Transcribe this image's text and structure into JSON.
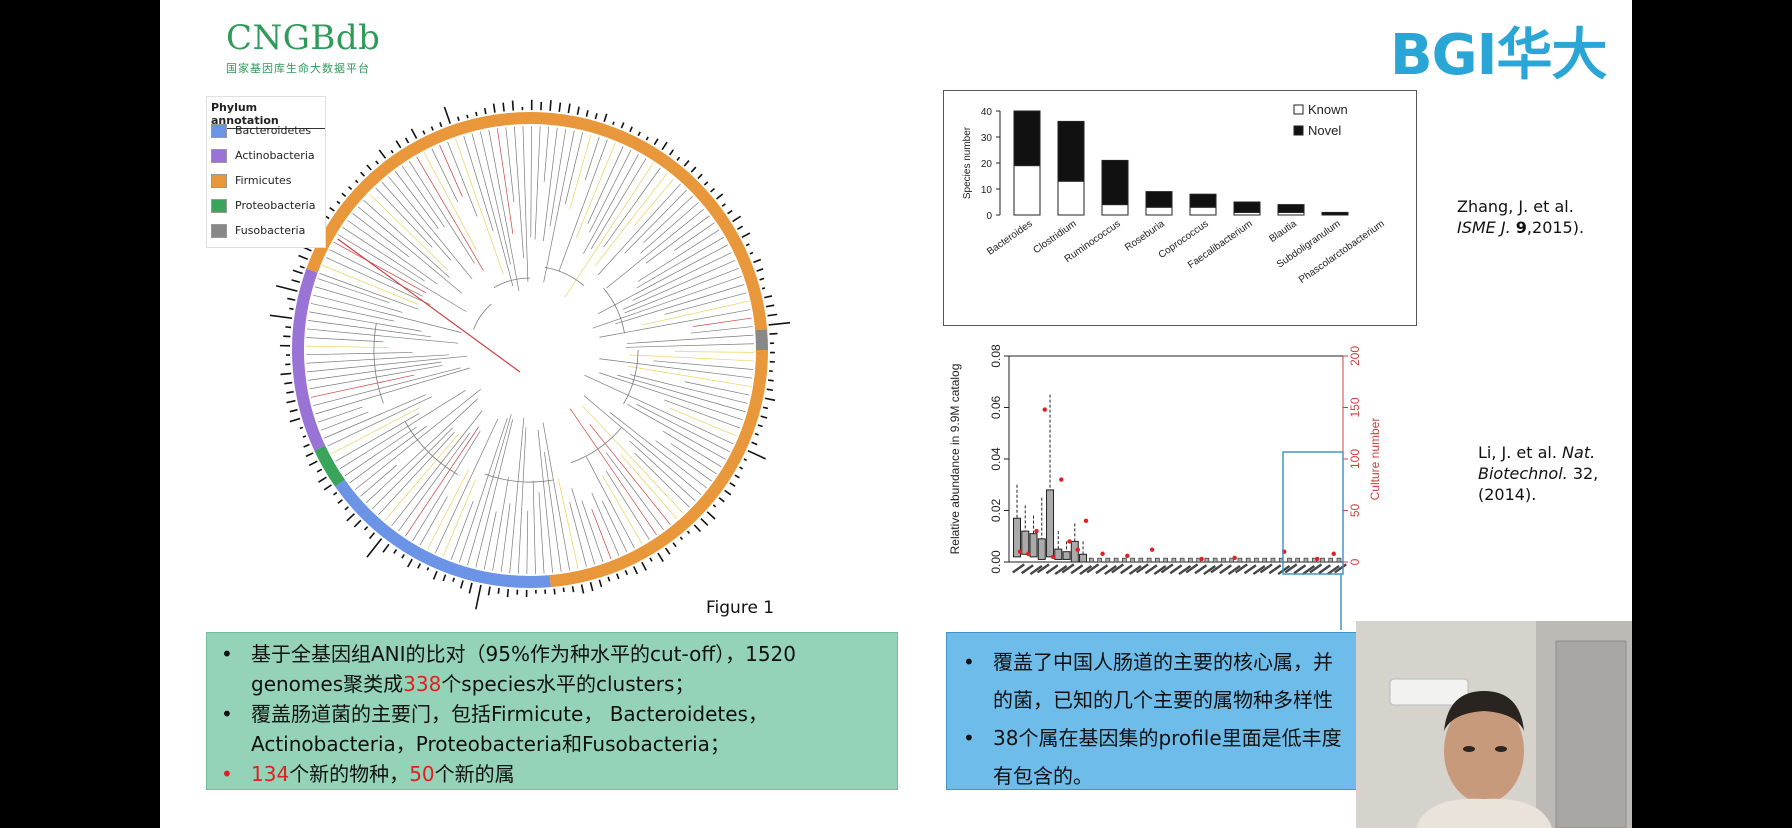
{
  "logos": {
    "cngb_title": "CNGBdb",
    "cngb_sub": "国家基因库生命大数据平台",
    "bgi": "BGI华大"
  },
  "legend": {
    "title": "Phylum annotation",
    "items": [
      {
        "label": "Bacteroidetes",
        "color": "#6b94e6"
      },
      {
        "label": "Actinobacteria",
        "color": "#9a73d6"
      },
      {
        "label": "Firmicutes",
        "color": "#e8973a"
      },
      {
        "label": "Proteobacteria",
        "color": "#3aa55a"
      },
      {
        "label": "Fusobacteria",
        "color": "#888888"
      }
    ]
  },
  "figure_label": "Figure 1",
  "left_box": {
    "b1_pre": "基于全基因组ANI的比对（95%作为种水平的cut-off），1520",
    "b1_line2_pre": "genomes聚类成",
    "b1_num": "338",
    "b1_line2_post": "个species水平的clusters；",
    "b2_line1": "覆盖肠道菌的主要门，包括Firmicute， Bacteroidetes，",
    "b2_line2": "Actinobacteria，Proteobacteria和Fusobacteria；",
    "b3_num1": "134",
    "b3_mid": "个新的物种，",
    "b3_num2": "50",
    "b3_post": "个新的属"
  },
  "right_box": {
    "b1_line1": "覆盖了中国人肠道的主要的核心属，并",
    "b1_line2": "的菌，已知的几个主要的属物种多样性",
    "b2_line1": "38个属在基因集的profile里面是低丰度",
    "b2_line2": "有包含的。"
  },
  "citations": {
    "c1_line1": "Zhang, J. et al.",
    "c1_journal": "ISME J.",
    "c1_vol": "9",
    "c1_year": ",2015).",
    "c2_line1_pre": "Li, J. et al. ",
    "c2_journal1": "Nat.",
    "c2_journal2": "Biotechnol.",
    "c2_vol": " 32,",
    "c2_year": "(2014)."
  },
  "chart_data": [
    {
      "type": "bar",
      "ylabel": "Species number",
      "ylim": [
        0,
        40
      ],
      "yticks": [
        0,
        10,
        20,
        30,
        40
      ],
      "categories": [
        "Bacteroides",
        "Clostridium",
        "Ruminococcus",
        "Roseburia",
        "Coprococcus",
        "Faecalibacterium",
        "Blautia",
        "Subdoligranulum",
        "Phascolarctobacterium"
      ],
      "series": [
        {
          "name": "Known",
          "values": [
            19,
            13,
            4,
            3,
            3,
            1,
            1,
            0,
            0
          ]
        },
        {
          "name": "Novel",
          "values": [
            21,
            23,
            17,
            6,
            5,
            4,
            3,
            1,
            0
          ]
        }
      ],
      "legend": "top-right",
      "colors": {
        "Known": "#ffffff",
        "Novel": "#111111"
      }
    },
    {
      "type": "box",
      "ylabel": "Relative abundance in 9.9M catalog",
      "y2label": "Culture number",
      "ylim": [
        0,
        0.08
      ],
      "yticks": [
        "0.00",
        "0.02",
        "0.04",
        "0.06",
        "0.08"
      ],
      "y2lim": [
        0,
        200
      ],
      "y2ticks": [
        0,
        50,
        100,
        150,
        200
      ],
      "colors": {
        "box": "#aaaaaa",
        "culture_points": "#e02020",
        "highlight": "#3a8fc0"
      }
    }
  ]
}
